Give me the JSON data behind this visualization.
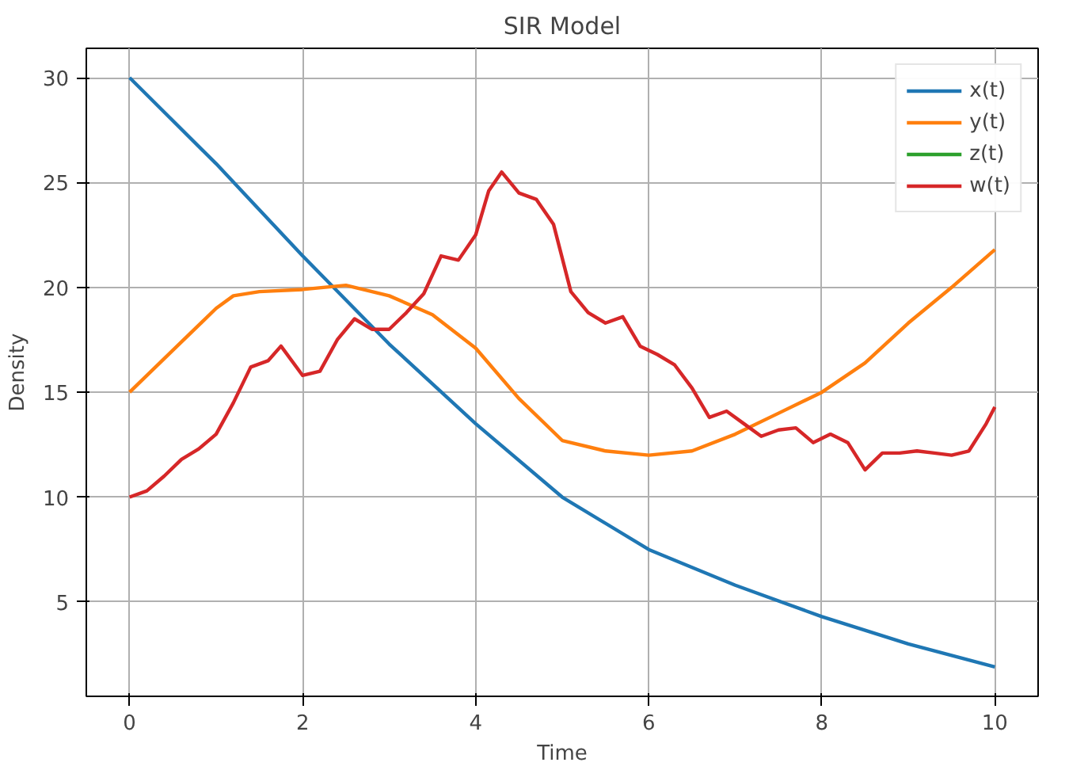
{
  "chart_data": {
    "type": "line",
    "title": "SIR Model",
    "xlabel": "Time",
    "ylabel": "Density",
    "xlim": [
      -0.5,
      10.5
    ],
    "ylim": [
      0.5,
      31.4
    ],
    "xticks": [
      0,
      2,
      4,
      6,
      8,
      10
    ],
    "yticks": [
      5,
      10,
      15,
      20,
      25,
      30
    ],
    "grid": true,
    "legend": "top right",
    "line_style": "solid",
    "series": [
      {
        "name": "x(t)",
        "color": "#1f77b4",
        "x": [
          0,
          1,
          2,
          3,
          4,
          5,
          6,
          7,
          8,
          9,
          10
        ],
        "values": [
          30,
          25.9,
          21.5,
          17.3,
          13.5,
          10,
          7.5,
          5.8,
          4.3,
          3,
          1.9
        ]
      },
      {
        "name": "y(t)",
        "color": "#ff7f0e",
        "x": [
          0,
          0.5,
          1,
          1.2,
          1.5,
          2,
          2.5,
          3,
          3.5,
          4,
          4.5,
          5,
          5.5,
          6,
          6.5,
          7,
          7.5,
          8,
          8.5,
          9,
          9.5,
          10
        ],
        "values": [
          15,
          17,
          19,
          19.6,
          19.8,
          19.9,
          20.1,
          19.6,
          18.7,
          17.1,
          14.7,
          12.7,
          12.2,
          12,
          12.2,
          13,
          14,
          15,
          16.4,
          18.3,
          20,
          21.8
        ]
      },
      {
        "name": "z(t)",
        "color": "#2ca02c"
      },
      {
        "name": "w(t)",
        "color": "#d62728",
        "x": [
          0,
          0.2,
          0.4,
          0.6,
          0.8,
          1,
          1.2,
          1.4,
          1.6,
          1.75,
          2,
          2.2,
          2.4,
          2.6,
          2.8,
          3,
          3.2,
          3.4,
          3.6,
          3.8,
          4,
          4.15,
          4.3,
          4.5,
          4.7,
          4.9,
          5.1,
          5.3,
          5.5,
          5.7,
          5.9,
          6.1,
          6.3,
          6.5,
          6.7,
          6.9,
          7.1,
          7.3,
          7.5,
          7.7,
          7.9,
          8.1,
          8.3,
          8.5,
          8.7,
          8.9,
          9.1,
          9.3,
          9.5,
          9.7,
          9.9,
          10
        ],
        "values": [
          10,
          10.3,
          11,
          11.8,
          12.3,
          13,
          14.5,
          16.2,
          16.5,
          17.2,
          15.8,
          16,
          17.5,
          18.5,
          18,
          18,
          18.8,
          19.7,
          21.5,
          21.3,
          22.5,
          24.6,
          25.5,
          24.5,
          24.2,
          23,
          19.8,
          18.8,
          18.3,
          18.6,
          17.2,
          16.8,
          16.3,
          15.2,
          13.8,
          14.1,
          13.5,
          12.9,
          13.2,
          13.3,
          12.6,
          13,
          12.6,
          11.3,
          12.1,
          12.1,
          12.2,
          12.1,
          12,
          12.2,
          13.5,
          14.3
        ]
      }
    ]
  }
}
